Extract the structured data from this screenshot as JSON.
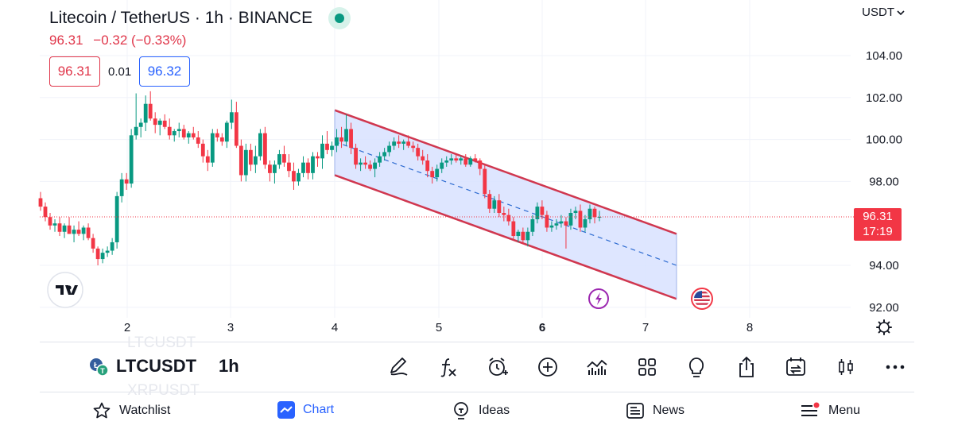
{
  "header": {
    "title": "Litecoin / TetherUS · 1h · BINANCE",
    "last": "96.31",
    "change": "−0.32 (−0.33%)",
    "sell": "96.31",
    "spread": "0.01",
    "buy": "96.32",
    "currency": "USDT"
  },
  "price_axis": {
    "ticks": [
      "104.00",
      "102.00",
      "100.00",
      "98.00",
      "94.00",
      "92.00"
    ],
    "last_price": "96.31",
    "countdown": "17:19"
  },
  "time_axis": {
    "ticks": [
      "2",
      "3",
      "4",
      "5",
      "6",
      "7",
      "8"
    ]
  },
  "chart_data": {
    "type": "candlestick",
    "symbol": "LTCUSDT",
    "interval": "1h",
    "ylim": [
      91.5,
      106.5
    ],
    "candles": [
      [
        97.2,
        97.5,
        96.6,
        96.8
      ],
      [
        96.8,
        97.0,
        96.1,
        96.3
      ],
      [
        96.3,
        96.5,
        95.7,
        95.9
      ],
      [
        95.9,
        96.2,
        95.6,
        96.0
      ],
      [
        96.0,
        96.3,
        95.4,
        95.6
      ],
      [
        95.6,
        96.0,
        95.3,
        95.9
      ],
      [
        95.9,
        96.3,
        95.5,
        95.5
      ],
      [
        95.5,
        95.9,
        95.1,
        95.7
      ],
      [
        95.7,
        96.1,
        95.4,
        95.5
      ],
      [
        95.5,
        95.9,
        95.2,
        95.8
      ],
      [
        95.8,
        96.0,
        95.2,
        95.3
      ],
      [
        95.3,
        95.5,
        94.6,
        94.8
      ],
      [
        94.8,
        94.9,
        94.0,
        94.3
      ],
      [
        94.3,
        94.8,
        94.1,
        94.6
      ],
      [
        94.6,
        94.9,
        94.4,
        94.7
      ],
      [
        94.7,
        95.3,
        94.5,
        95.1
      ],
      [
        95.1,
        97.5,
        94.8,
        97.3
      ],
      [
        97.3,
        98.4,
        97.0,
        98.1
      ],
      [
        98.1,
        98.4,
        97.6,
        97.9
      ],
      [
        97.9,
        100.5,
        97.7,
        100.2
      ],
      [
        100.2,
        102.2,
        100.0,
        100.6
      ],
      [
        100.6,
        101.0,
        100.1,
        100.8
      ],
      [
        100.8,
        102.1,
        100.4,
        101.7
      ],
      [
        101.7,
        102.3,
        100.9,
        101.0
      ],
      [
        101.0,
        101.3,
        100.3,
        100.7
      ],
      [
        100.7,
        101.0,
        100.2,
        100.9
      ],
      [
        100.9,
        101.2,
        100.5,
        100.6
      ],
      [
        100.6,
        101.0,
        100.0,
        100.2
      ],
      [
        100.2,
        100.5,
        99.9,
        100.4
      ],
      [
        100.4,
        100.8,
        100.1,
        100.5
      ],
      [
        100.5,
        100.7,
        100.0,
        100.1
      ],
      [
        100.1,
        100.4,
        99.8,
        100.3
      ],
      [
        100.3,
        100.6,
        100.0,
        100.1
      ],
      [
        100.1,
        100.4,
        99.6,
        99.8
      ],
      [
        99.8,
        100.0,
        98.9,
        99.2
      ],
      [
        99.2,
        99.5,
        98.5,
        98.9
      ],
      [
        98.9,
        100.5,
        98.7,
        100.3
      ],
      [
        100.3,
        100.5,
        99.9,
        100.1
      ],
      [
        100.1,
        100.3,
        99.7,
        99.9
      ],
      [
        99.9,
        100.9,
        99.6,
        100.8
      ],
      [
        100.8,
        101.9,
        100.5,
        101.3
      ],
      [
        101.3,
        101.8,
        99.6,
        99.7
      ],
      [
        99.7,
        100.0,
        98.0,
        98.3
      ],
      [
        98.3,
        99.8,
        98.0,
        99.5
      ],
      [
        99.5,
        99.8,
        98.5,
        98.8
      ],
      [
        98.8,
        99.7,
        98.4,
        99.2
      ],
      [
        99.2,
        100.5,
        99.0,
        100.3
      ],
      [
        100.3,
        100.6,
        98.6,
        98.8
      ],
      [
        98.8,
        99.0,
        98.0,
        98.4
      ],
      [
        98.4,
        99.0,
        97.9,
        98.8
      ],
      [
        98.8,
        99.5,
        98.6,
        99.3
      ],
      [
        99.3,
        99.7,
        98.7,
        98.9
      ],
      [
        98.9,
        99.3,
        98.2,
        98.5
      ],
      [
        98.5,
        98.9,
        97.6,
        98.0
      ],
      [
        98.0,
        98.6,
        97.8,
        98.4
      ],
      [
        98.4,
        99.2,
        98.2,
        98.9
      ],
      [
        98.9,
        99.1,
        98.1,
        98.4
      ],
      [
        98.4,
        99.4,
        98.1,
        99.2
      ],
      [
        99.2,
        99.4,
        98.7,
        99.1
      ],
      [
        99.1,
        100.2,
        98.6,
        99.8
      ],
      [
        99.8,
        100.4,
        99.3,
        99.5
      ],
      [
        99.5,
        99.9,
        99.2,
        99.7
      ],
      [
        99.7,
        100.5,
        99.4,
        100.1
      ],
      [
        100.1,
        100.6,
        99.6,
        99.9
      ],
      [
        99.9,
        101.2,
        99.7,
        100.5
      ],
      [
        100.5,
        100.8,
        99.3,
        99.6
      ],
      [
        99.6,
        99.8,
        98.6,
        98.8
      ],
      [
        98.8,
        99.1,
        98.5,
        98.9
      ],
      [
        98.9,
        99.2,
        98.6,
        98.8
      ],
      [
        98.8,
        99.0,
        98.5,
        98.6
      ],
      [
        98.6,
        99.1,
        98.2,
        98.9
      ],
      [
        98.9,
        99.4,
        98.7,
        99.2
      ],
      [
        99.2,
        99.6,
        99.0,
        99.4
      ],
      [
        99.4,
        99.9,
        99.2,
        99.7
      ],
      [
        99.7,
        100.1,
        99.5,
        99.9
      ],
      [
        99.9,
        100.2,
        99.6,
        99.8
      ],
      [
        99.8,
        100.0,
        99.5,
        99.9
      ],
      [
        99.9,
        100.2,
        99.6,
        99.7
      ],
      [
        99.7,
        99.9,
        99.4,
        99.6
      ],
      [
        99.6,
        99.8,
        99.0,
        99.2
      ],
      [
        99.2,
        99.5,
        98.8,
        99.0
      ],
      [
        99.0,
        99.3,
        98.2,
        98.5
      ],
      [
        98.5,
        98.7,
        97.9,
        98.2
      ],
      [
        98.2,
        98.8,
        98.0,
        98.6
      ],
      [
        98.6,
        99.1,
        98.4,
        98.9
      ],
      [
        98.9,
        99.2,
        98.7,
        99.0
      ],
      [
        99.0,
        99.3,
        98.8,
        99.1
      ],
      [
        99.1,
        99.3,
        98.9,
        99.0
      ],
      [
        99.0,
        99.2,
        98.8,
        99.1
      ],
      [
        99.1,
        99.3,
        98.7,
        98.8
      ],
      [
        98.8,
        99.2,
        98.7,
        99.1
      ],
      [
        99.1,
        99.3,
        98.9,
        99.0
      ],
      [
        99.0,
        99.1,
        98.3,
        98.6
      ],
      [
        98.6,
        98.8,
        97.2,
        97.4
      ],
      [
        97.4,
        97.6,
        96.5,
        96.7
      ],
      [
        96.7,
        97.3,
        96.5,
        97.1
      ],
      [
        97.1,
        97.4,
        96.3,
        96.5
      ],
      [
        96.5,
        96.8,
        96.1,
        96.4
      ],
      [
        96.4,
        96.7,
        95.9,
        96.1
      ],
      [
        96.1,
        96.3,
        95.2,
        95.4
      ],
      [
        95.4,
        95.7,
        95.1,
        95.6
      ],
      [
        95.6,
        95.8,
        95.0,
        95.2
      ],
      [
        95.2,
        95.8,
        94.9,
        95.6
      ],
      [
        95.6,
        96.4,
        95.4,
        96.2
      ],
      [
        96.2,
        97.0,
        96.0,
        96.8
      ],
      [
        96.8,
        97.1,
        96.2,
        96.4
      ],
      [
        96.4,
        96.6,
        95.6,
        95.8
      ],
      [
        95.8,
        96.1,
        95.6,
        95.9
      ],
      [
        95.9,
        96.2,
        95.7,
        96.0
      ],
      [
        96.0,
        96.4,
        95.8,
        96.1
      ],
      [
        96.1,
        96.3,
        94.8,
        95.9
      ],
      [
        95.9,
        96.7,
        95.7,
        96.5
      ],
      [
        96.5,
        96.8,
        96.2,
        96.6
      ],
      [
        96.6,
        96.9,
        95.6,
        95.8
      ],
      [
        95.8,
        96.4,
        95.6,
        96.2
      ],
      [
        96.2,
        96.9,
        96.0,
        96.7
      ],
      [
        96.7,
        96.8,
        96.0,
        96.3
      ],
      [
        96.3,
        96.6,
        96.1,
        96.31
      ]
    ],
    "channel": {
      "upper": [
        [
          101.4,
          96.5
        ],
        [
          99.4,
          95.5
        ]
      ],
      "lower": [
        [
          98.3,
          92.4
        ]
      ],
      "median": [
        [
          99.9,
          94.0
        ]
      ]
    }
  },
  "toolbar": {
    "symbol": "LTCUSDT",
    "timeframe": "1h",
    "ghost_above": "LTCUSDT",
    "ghost_below": "XRPUSDT"
  },
  "tools": [
    "pen-icon",
    "function-icon",
    "alert-clock-icon",
    "plus-circle-icon",
    "indicators-icon",
    "layout-grid-icon",
    "lightbulb-icon",
    "share-icon",
    "replay-icon",
    "candle-type-icon",
    "more-icon"
  ],
  "nav": {
    "watchlist": "Watchlist",
    "chart": "Chart",
    "ideas": "Ideas",
    "news": "News",
    "menu": "Menu"
  },
  "colors": {
    "up": "#089981",
    "down": "#f23645",
    "accent": "#2962ff",
    "channel_fill": "#d8e2ff",
    "channel_line": "#d0374f"
  }
}
